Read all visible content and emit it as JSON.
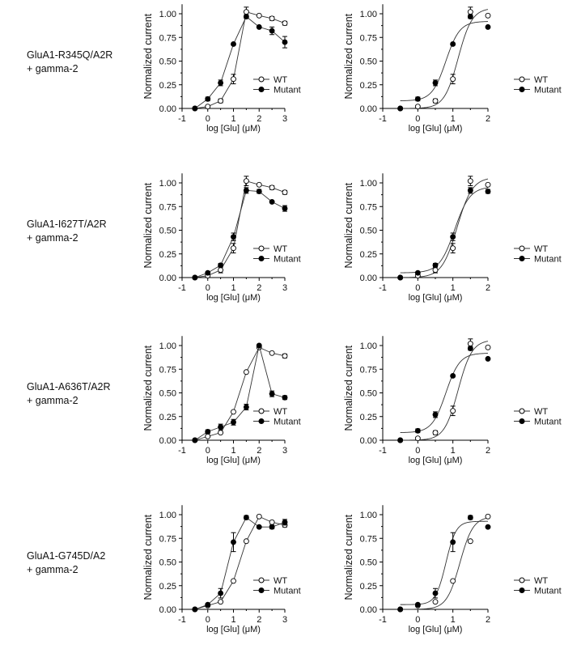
{
  "chart_data": {
    "type": "line",
    "xlabel": "log [Glu] (μM)",
    "ylabel": "Normalized current",
    "yticks": [
      "0.00",
      "0.25",
      "0.50",
      "0.75",
      "1.00"
    ],
    "left_xticks": [
      "-1",
      "0",
      "1",
      "2",
      "3"
    ],
    "right_xticks": [
      "-1",
      "0",
      "1",
      "2"
    ],
    "left_xlim": [
      -1,
      3
    ],
    "right_xlim": [
      -1,
      2
    ],
    "ylim": [
      0,
      1.1
    ],
    "legend": [
      "WT",
      "Mutant"
    ],
    "x": [
      -0.5,
      0,
      0.5,
      1,
      1.5,
      2,
      2.5,
      3
    ],
    "rows": [
      {
        "label": [
          "GluA1-R345Q/A2R",
          "+ gamma-2"
        ],
        "left": {
          "WT": {
            "y": [
              0,
              0.02,
              0.08,
              0.31,
              1.02,
              0.98,
              0.95,
              0.9
            ],
            "err": [
              0,
              0.01,
              0.02,
              0.05,
              0.05,
              0.01,
              0.02,
              0.02
            ]
          },
          "Mutant": {
            "y": [
              0,
              0.1,
              0.27,
              0.68,
              0.97,
              0.86,
              0.82,
              0.7
            ],
            "err": [
              0,
              0.02,
              0.03,
              0.01,
              0.02,
              0.01,
              0.04,
              0.06
            ]
          }
        },
        "right": {
          "WT": {
            "y": [
              0,
              0.02,
              0.08,
              0.31,
              1.02,
              0.98
            ],
            "err": [
              0,
              0.01,
              0.02,
              0.05,
              0.05,
              0.01
            ],
            "fit": {
              "bottom": 0,
              "top": 1.06,
              "logEC50": 1.15,
              "hill": 2.2
            }
          },
          "Mutant": {
            "y": [
              0,
              0.1,
              0.27,
              0.68,
              0.97,
              0.86
            ],
            "err": [
              0,
              0.02,
              0.03,
              0.01,
              0.02,
              0.01
            ],
            "fit": {
              "bottom": 0.08,
              "top": 0.92,
              "logEC50": 0.8,
              "hill": 2.2
            }
          }
        }
      },
      {
        "label": [
          "GluA1-I627T/A2R",
          "+ gamma-2"
        ],
        "left": {
          "WT": {
            "y": [
              0,
              0.02,
              0.08,
              0.31,
              1.02,
              0.98,
              0.95,
              0.9
            ],
            "err": [
              0,
              0.01,
              0.03,
              0.05,
              0.05,
              0.01,
              0.02,
              0.02
            ]
          },
          "Mutant": {
            "y": [
              0,
              0.05,
              0.13,
              0.43,
              0.92,
              0.91,
              0.8,
              0.73
            ],
            "err": [
              0,
              0.01,
              0.02,
              0.04,
              0.03,
              0.02,
              0.01,
              0.03
            ]
          }
        },
        "right": {
          "WT": {
            "y": [
              0,
              0.02,
              0.08,
              0.31,
              1.02,
              0.98
            ],
            "err": [
              0,
              0.01,
              0.03,
              0.05,
              0.05,
              0.01
            ],
            "fit": {
              "bottom": 0,
              "top": 1.06,
              "logEC50": 1.12,
              "hill": 2.0
            }
          },
          "Mutant": {
            "y": [
              0,
              0.05,
              0.13,
              0.43,
              0.92,
              0.91
            ],
            "err": [
              0,
              0.01,
              0.02,
              0.04,
              0.03,
              0.02
            ],
            "fit": {
              "bottom": 0.05,
              "top": 0.96,
              "logEC50": 1.05,
              "hill": 2.0
            }
          }
        }
      },
      {
        "label": [
          "GluA1-A636T/A2R",
          "+ gamma-2"
        ],
        "left": {
          "WT": {
            "y": [
              0,
              0.04,
              0.08,
              0.3,
              0.72,
              0.98,
              0.92,
              0.89
            ],
            "err": [
              0,
              0.01,
              0.01,
              0.01,
              0.01,
              0.01,
              0.01,
              0.02
            ]
          },
          "Mutant": {
            "y": [
              0,
              0.09,
              0.14,
              0.19,
              0.35,
              1.0,
              0.49,
              0.45
            ],
            "err": [
              0,
              0.02,
              0.03,
              0.03,
              0.03,
              0.01,
              0.03,
              0.02
            ]
          }
        },
        "right": {
          "WT": {
            "y": [
              0,
              0.02,
              0.08,
              0.31,
              1.02,
              0.98
            ],
            "err": [
              0,
              0.01,
              0.02,
              0.05,
              0.05,
              0.01
            ],
            "fit": {
              "bottom": 0,
              "top": 1.06,
              "logEC50": 1.15,
              "hill": 2.2
            }
          },
          "Mutant": {
            "y": [
              0,
              0.1,
              0.27,
              0.68,
              0.97,
              0.86
            ],
            "err": [
              0,
              0.02,
              0.03,
              0.01,
              0.02,
              0.01
            ],
            "fit": {
              "bottom": 0.08,
              "top": 0.92,
              "logEC50": 0.8,
              "hill": 2.2
            }
          }
        }
      },
      {
        "label": [
          "GluA1-G745D/A2",
          "+ gamma-2"
        ],
        "left": {
          "WT": {
            "y": [
              0,
              0.04,
              0.08,
              0.3,
              0.72,
              0.98,
              0.92,
              0.89
            ],
            "err": [
              0,
              0.01,
              0.01,
              0.01,
              0.01,
              0.01,
              0.01,
              0.02
            ]
          },
          "Mutant": {
            "y": [
              0,
              0.05,
              0.17,
              0.71,
              0.97,
              0.87,
              0.87,
              0.92
            ],
            "err": [
              0,
              0.01,
              0.05,
              0.1,
              0.02,
              0.01,
              0.02,
              0.03
            ]
          }
        },
        "right": {
          "WT": {
            "y": [
              0,
              0.04,
              0.08,
              0.3,
              0.72,
              0.98
            ],
            "err": [
              0,
              0.01,
              0.01,
              0.01,
              0.01,
              0.01
            ],
            "fit": {
              "bottom": 0,
              "top": 0.98,
              "logEC50": 1.2,
              "hill": 2.3
            }
          },
          "Mutant": {
            "y": [
              0,
              0.05,
              0.17,
              0.71,
              0.97,
              0.87
            ],
            "err": [
              0,
              0.01,
              0.05,
              0.1,
              0.02,
              0.01
            ],
            "fit": {
              "bottom": 0.05,
              "top": 0.93,
              "logEC50": 0.8,
              "hill": 3.0
            }
          }
        }
      }
    ]
  }
}
